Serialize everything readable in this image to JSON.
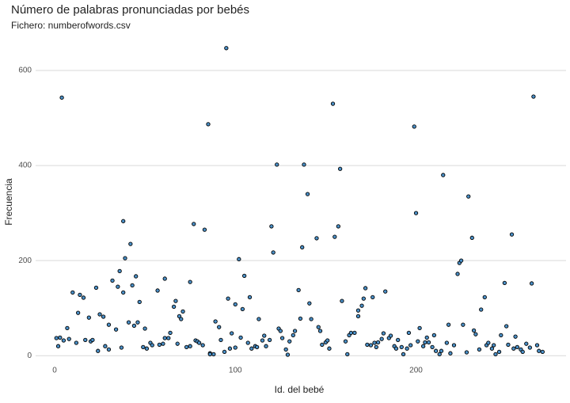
{
  "chart_data": {
    "type": "scatter",
    "title": "Número de palabras pronunciadas por bebés",
    "subtitle": "Fichero: numberofwords.csv",
    "x_label": "Id. del bebé",
    "y_label": "Frecuencia",
    "color": "#4a90c8",
    "grid": true,
    "xlim": [
      -10.5,
      283
    ],
    "ylim": [
      -18,
      665
    ],
    "xticks": [
      0,
      100,
      200
    ],
    "yticks": [
      0,
      200,
      400,
      600
    ],
    "x": [
      1,
      2,
      3,
      4,
      5,
      7,
      8,
      10,
      12,
      13,
      14,
      16,
      17,
      19,
      20,
      21,
      23,
      24,
      25,
      27,
      28,
      30,
      30,
      32,
      34,
      35,
      36,
      37,
      38,
      38,
      39,
      41,
      42,
      43,
      44,
      45,
      46,
      47,
      49,
      50,
      51,
      53,
      54,
      57,
      58,
      60,
      61,
      61,
      63,
      64,
      66,
      67,
      68,
      69,
      70,
      71,
      73,
      75,
      75,
      77,
      78,
      79,
      80,
      82,
      83,
      85,
      86,
      86,
      88,
      89,
      91,
      92,
      94,
      95,
      96,
      97,
      98,
      100,
      100,
      102,
      103,
      104,
      105,
      107,
      108,
      109,
      111,
      112,
      113,
      115,
      116,
      117,
      119,
      120,
      121,
      123,
      124,
      125,
      126,
      128,
      129,
      130,
      132,
      133,
      135,
      136,
      137,
      138,
      140,
      141,
      142,
      145,
      146,
      147,
      148,
      150,
      151,
      152,
      154,
      155,
      157,
      158,
      159,
      161,
      162,
      163,
      164,
      166,
      168,
      168,
      170,
      171,
      172,
      173,
      175,
      176,
      177,
      178,
      179,
      181,
      182,
      183,
      185,
      186,
      188,
      189,
      190,
      192,
      193,
      195,
      196,
      197,
      199,
      200,
      201,
      202,
      204,
      205,
      206,
      207,
      209,
      210,
      211,
      213,
      214,
      215,
      217,
      218,
      219,
      221,
      223,
      224,
      225,
      226,
      228,
      229,
      231,
      232,
      233,
      235,
      236,
      238,
      239,
      240,
      242,
      243,
      244,
      246,
      247,
      249,
      250,
      251,
      253,
      254,
      255,
      256,
      258,
      259,
      261,
      263,
      264,
      265,
      267,
      268,
      270
    ],
    "values": [
      37,
      20,
      38,
      543,
      32,
      58,
      35,
      133,
      27,
      90,
      128,
      122,
      33,
      80,
      30,
      33,
      143,
      10,
      87,
      82,
      20,
      13,
      65,
      158,
      55,
      145,
      178,
      17,
      133,
      283,
      205,
      70,
      235,
      148,
      63,
      167,
      70,
      113,
      18,
      57,
      15,
      27,
      22,
      137,
      23,
      25,
      37,
      162,
      37,
      48,
      103,
      115,
      25,
      83,
      77,
      93,
      18,
      155,
      20,
      277,
      32,
      30,
      27,
      22,
      265,
      487,
      5,
      3,
      3,
      72,
      60,
      33,
      8,
      647,
      120,
      15,
      47,
      108,
      17,
      203,
      38,
      98,
      168,
      27,
      123,
      15,
      20,
      18,
      77,
      32,
      42,
      20,
      33,
      272,
      217,
      402,
      57,
      52,
      37,
      13,
      2,
      30,
      43,
      52,
      138,
      78,
      228,
      402,
      340,
      110,
      77,
      247,
      60,
      52,
      23,
      28,
      32,
      15,
      530,
      250,
      272,
      393,
      115,
      30,
      3,
      43,
      48,
      48,
      83,
      95,
      105,
      120,
      142,
      23,
      22,
      123,
      27,
      18,
      28,
      35,
      47,
      135,
      37,
      42,
      20,
      15,
      33,
      18,
      3,
      15,
      48,
      22,
      482,
      300,
      30,
      58,
      20,
      28,
      38,
      28,
      18,
      43,
      10,
      3,
      10,
      380,
      27,
      65,
      5,
      22,
      172,
      195,
      200,
      65,
      7,
      335,
      248,
      53,
      45,
      13,
      97,
      123,
      22,
      27,
      15,
      22,
      3,
      8,
      43,
      153,
      62,
      23,
      255,
      15,
      40,
      18,
      13,
      8,
      25,
      17,
      152,
      545,
      22,
      10,
      8
    ]
  }
}
